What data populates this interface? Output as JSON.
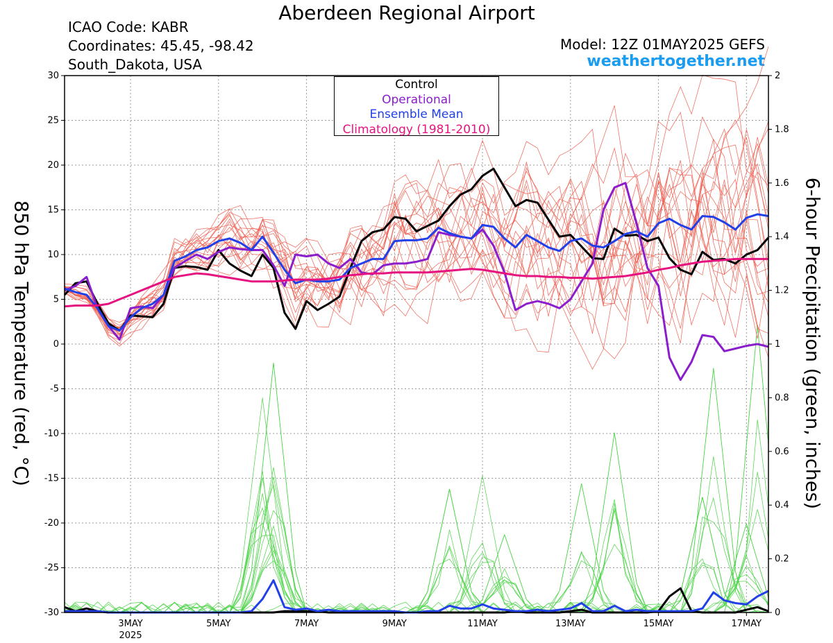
{
  "header": {
    "title": "Aberdeen Regional Airport",
    "icao": "ICAO Code: KABR",
    "coords": "Coordinates: 45.45, -98.42",
    "region": "South_Dakota, USA",
    "model": "Model: 12Z 01MAY2025 GEFS",
    "site": "weathertogether.net"
  },
  "colors": {
    "members_temp": "#ef5a4c",
    "members_precip": "#4fd44a",
    "control": "#000000",
    "operational": "#8a1dcc",
    "ensemble_mean": "#2140e8",
    "climatology": "#e5137f",
    "site": "#1a9cf0"
  },
  "chart_data": {
    "type": "line",
    "ylabel": "850 hPa Temperature (red, °C)",
    "y2label": "6-hour Precipitation (green, inches)",
    "ylim": [
      -30,
      30
    ],
    "y2lim": [
      0,
      2
    ],
    "yticks": [
      30,
      25,
      20,
      15,
      10,
      5,
      0,
      -5,
      -10,
      -15,
      -20,
      -25,
      -30
    ],
    "y2ticks": [
      2,
      1.8,
      1.6,
      1.4,
      1.2,
      1,
      0.8,
      0.6,
      0.4,
      0.2,
      0
    ],
    "xlim": [
      1.5,
      17.5
    ],
    "xticks": [
      {
        "x": 3,
        "label": "3MAY",
        "sub": "2025"
      },
      {
        "x": 5,
        "label": "5MAY",
        "sub": ""
      },
      {
        "x": 7,
        "label": "7MAY",
        "sub": ""
      },
      {
        "x": 9,
        "label": "9MAY",
        "sub": ""
      },
      {
        "x": 11,
        "label": "11MAY",
        "sub": ""
      },
      {
        "x": 13,
        "label": "13MAY",
        "sub": ""
      },
      {
        "x": 15,
        "label": "15MAY",
        "sub": ""
      },
      {
        "x": 17,
        "label": "17MAY",
        "sub": ""
      }
    ],
    "grid": true,
    "legend": {
      "placement": "top-center",
      "entries": [
        {
          "label": "Control",
          "color": "#000000"
        },
        {
          "label": "Operational",
          "color": "#8a1dcc"
        },
        {
          "label": "Ensemble Mean",
          "color": "#2140e8"
        },
        {
          "label": "Climatology (1981-2010)",
          "color": "#e5137f"
        }
      ]
    },
    "x": [
      1.5,
      1.75,
      2.0,
      2.25,
      2.5,
      2.75,
      3.0,
      3.25,
      3.5,
      3.75,
      4.0,
      4.25,
      4.5,
      4.75,
      5.0,
      5.25,
      5.5,
      5.75,
      6.0,
      6.25,
      6.5,
      6.75,
      7.0,
      7.25,
      7.5,
      7.75,
      8.0,
      8.25,
      8.5,
      8.75,
      9.0,
      9.25,
      9.5,
      9.75,
      10.0,
      10.25,
      10.5,
      10.75,
      11.0,
      11.25,
      11.5,
      11.75,
      12.0,
      12.25,
      12.5,
      12.75,
      13.0,
      13.25,
      13.5,
      13.75,
      14.0,
      14.25,
      14.5,
      14.75,
      15.0,
      15.25,
      15.5,
      15.75,
      16.0,
      16.25,
      16.5,
      16.75,
      17.0,
      17.25,
      17.5
    ],
    "series": [
      {
        "name": "Control",
        "kind": "temp",
        "values": [
          5.5,
          6.8,
          7.0,
          4.5,
          2.3,
          1.5,
          3.2,
          3.1,
          3.0,
          4.5,
          8.5,
          8.7,
          8.6,
          8.3,
          10.5,
          9.0,
          8.2,
          7.6,
          10.0,
          8.5,
          3.5,
          1.7,
          4.8,
          3.8,
          4.5,
          5.3,
          8.5,
          11.5,
          12.5,
          12.8,
          14.2,
          14.0,
          12.6,
          13.2,
          13.8,
          15.4,
          16.7,
          17.3,
          18.8,
          19.6,
          17.5,
          15.4,
          16.1,
          15.8,
          13.9,
          12.0,
          12.2,
          10.9,
          9.6,
          9.5,
          12.9,
          12.1,
          12.2,
          11.5,
          11.9,
          9.6,
          8.3,
          7.8,
          10.3,
          9.4,
          9.5,
          9.0,
          10.0,
          10.5,
          11.9
        ]
      },
      {
        "name": "Operational",
        "kind": "temp",
        "values": [
          6.0,
          6.5,
          7.5,
          4.0,
          2.0,
          0.5,
          4.0,
          4.2,
          4.0,
          5.5,
          8.5,
          9.3,
          10.0,
          9.5,
          10.3,
          10.8,
          10.6,
          10.5,
          10.5,
          8.8,
          6.5,
          10.0,
          9.8,
          10.0,
          9.0,
          8.5,
          9.5,
          8.0,
          7.8,
          8.8,
          9.0,
          9.0,
          9.2,
          9.5,
          12.5,
          12.2,
          12.0,
          11.8,
          12.8,
          11.0,
          8.0,
          3.8,
          4.5,
          4.8,
          4.5,
          4.0,
          5.0,
          7.0,
          9.0,
          15.0,
          17.5,
          18.0,
          13.5,
          8.5,
          6.5,
          -1.5,
          -4.0,
          -2.0,
          1.0,
          0.8,
          -0.8,
          -0.5,
          -0.2,
          0.0,
          -0.3
        ]
      },
      {
        "name": "Ensemble Mean",
        "kind": "temp",
        "values": [
          6.2,
          5.8,
          5.5,
          4.0,
          2.0,
          1.5,
          3.0,
          4.0,
          4.5,
          5.5,
          9.3,
          9.8,
          10.5,
          10.8,
          11.5,
          11.8,
          11.3,
          10.5,
          12.0,
          10.2,
          8.3,
          6.8,
          7.2,
          7.0,
          7.0,
          7.2,
          8.5,
          9.0,
          9.5,
          9.5,
          11.5,
          11.6,
          11.6,
          11.8,
          13.0,
          12.4,
          12.0,
          11.8,
          13.3,
          13.1,
          11.8,
          10.8,
          12.2,
          11.5,
          10.8,
          10.4,
          11.5,
          11.8,
          11.0,
          10.8,
          11.5,
          12.3,
          12.6,
          12.0,
          13.5,
          14.0,
          13.3,
          12.8,
          14.3,
          14.2,
          13.6,
          12.8,
          14.1,
          14.5,
          14.3
        ]
      },
      {
        "name": "Climatology (1981-2010)",
        "kind": "temp",
        "values": [
          4.2,
          4.3,
          4.3,
          4.3,
          4.5,
          5.0,
          5.5,
          6.0,
          6.5,
          7.0,
          7.5,
          7.7,
          7.9,
          7.8,
          7.6,
          7.4,
          7.2,
          7.0,
          7.0,
          7.0,
          7.1,
          7.2,
          7.2,
          7.2,
          7.3,
          7.5,
          7.7,
          7.8,
          7.9,
          7.9,
          8.0,
          8.0,
          8.0,
          8.0,
          8.1,
          8.2,
          8.3,
          8.4,
          8.3,
          8.1,
          7.9,
          7.7,
          7.6,
          7.6,
          7.5,
          7.5,
          7.4,
          7.4,
          7.3,
          7.4,
          7.5,
          7.6,
          7.8,
          8.0,
          8.3,
          8.5,
          8.8,
          9.0,
          9.2,
          9.3,
          9.4,
          9.5,
          9.5,
          9.5,
          9.5
        ]
      },
      {
        "name": "Control",
        "kind": "precip",
        "values": [
          0.02,
          0.005,
          0.015,
          0.005,
          0,
          0,
          0,
          0,
          0,
          0,
          0,
          0,
          0,
          0,
          0,
          0,
          0,
          0,
          0,
          0,
          0.005,
          0.005,
          0.005,
          0.005,
          0,
          0,
          0,
          0,
          0,
          0,
          0,
          0,
          0,
          0,
          0,
          0,
          0,
          0,
          0,
          0,
          0,
          0.005,
          0,
          0,
          0,
          0,
          0.005,
          0.01,
          0,
          0,
          0,
          0,
          0,
          0,
          0.005,
          0.06,
          0.09,
          0.005,
          0,
          0,
          0,
          0,
          0.01,
          0.02,
          0.005
        ]
      },
      {
        "name": "Ensemble Mean",
        "kind": "precip",
        "values": [
          0.005,
          0.005,
          0.005,
          0.005,
          0,
          0,
          0,
          0,
          0,
          0,
          0,
          0,
          0,
          0,
          0,
          0,
          0,
          0.005,
          0.05,
          0.12,
          0.02,
          0.01,
          0.015,
          0.005,
          0.01,
          0.005,
          0.005,
          0.005,
          0.005,
          0.005,
          0.005,
          0,
          0,
          0.005,
          0.005,
          0.025,
          0.015,
          0.015,
          0.03,
          0.015,
          0.01,
          0.005,
          0.005,
          0.01,
          0.005,
          0.01,
          0.015,
          0.035,
          0.005,
          0.005,
          0.025,
          0.005,
          0.01,
          0.005,
          0.005,
          0.005,
          0.005,
          0.005,
          0.015,
          0.075,
          0.045,
          0.035,
          0.03,
          0.06,
          0.08
        ]
      }
    ],
    "members_temp_count": 20,
    "members_temp_spread": {
      "mean_series": "Ensemble Mean",
      "x_growth_start": 2.0
    },
    "members_precip_count": 20,
    "members_precip_peaks": [
      {
        "x": 6.25,
        "value": 0.93
      },
      {
        "x": 6.0,
        "value": 0.8
      },
      {
        "x": 6.25,
        "value": 0.54
      },
      {
        "x": 10.25,
        "value": 0.46
      },
      {
        "x": 11.0,
        "value": 0.51
      },
      {
        "x": 11.5,
        "value": 0.29
      },
      {
        "x": 13.25,
        "value": 0.48
      },
      {
        "x": 14.0,
        "value": 0.67
      },
      {
        "x": 16.25,
        "value": 0.91
      },
      {
        "x": 16.0,
        "value": 0.43
      },
      {
        "x": 17.25,
        "value": 1.07
      },
      {
        "x": 17.0,
        "value": 0.33
      }
    ]
  }
}
